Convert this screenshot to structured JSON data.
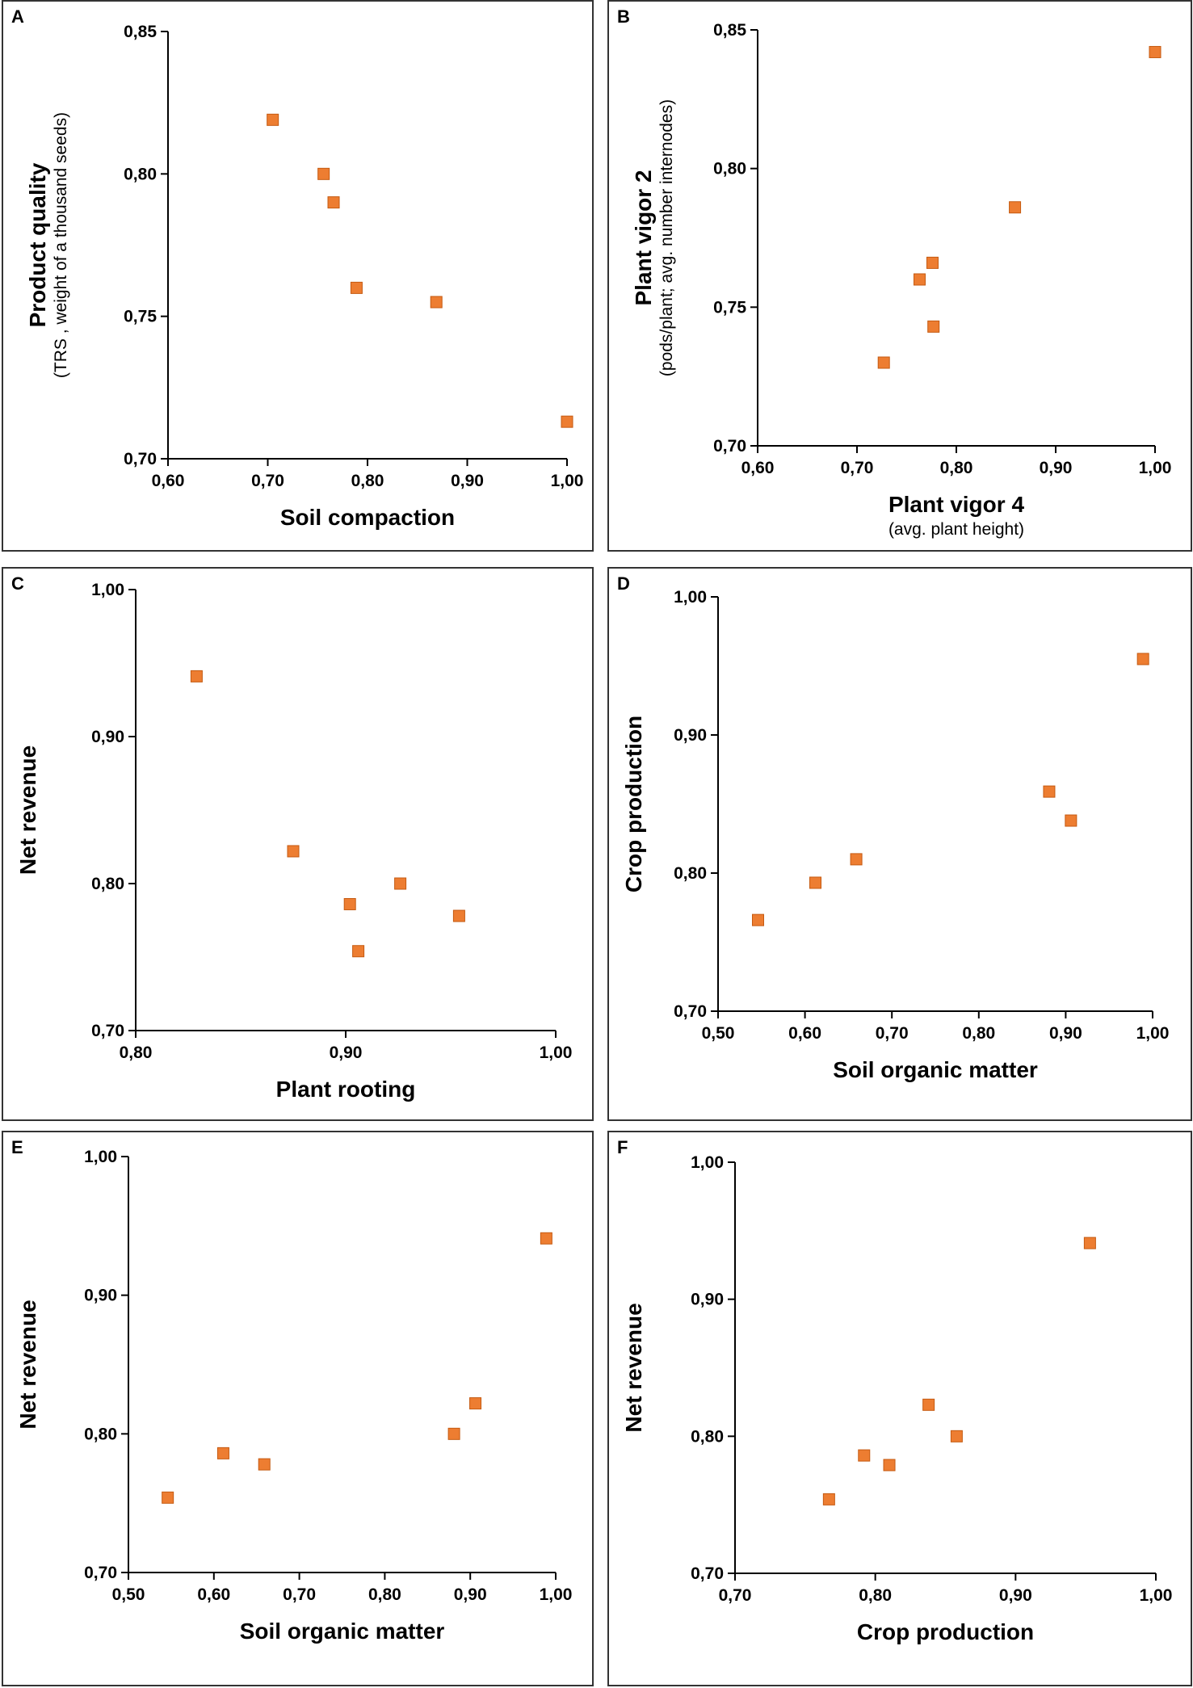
{
  "colors": {
    "marker": "#ED7D31",
    "marker_edge": "#C55A11",
    "axis": "#000000"
  },
  "chart_data": [
    {
      "panel": "A",
      "type": "scatter",
      "xlabel": "Soil compaction",
      "xsublabel": "",
      "ylabel": "Product quality",
      "ysublabel": "(TRS , weight of a thousand seeds)",
      "xlim": [
        0.6,
        1.0
      ],
      "ylim": [
        0.7,
        0.85
      ],
      "xticks": [
        "0,60",
        "0,70",
        "0,80",
        "0,90",
        "1,00"
      ],
      "yticks": [
        "0,70",
        "0,75",
        "0,80",
        "0,85"
      ],
      "x": [
        0.705,
        0.756,
        0.766,
        0.789,
        0.869,
        1.0
      ],
      "y": [
        0.819,
        0.8,
        0.79,
        0.76,
        0.755,
        0.713
      ]
    },
    {
      "panel": "B",
      "type": "scatter",
      "xlabel": "Plant vigor 4",
      "xsublabel": "(avg.  plant  height)",
      "ylabel": "Plant vigor 2",
      "ysublabel": "(pods/plant; avg. number internodes)",
      "xlim": [
        0.6,
        1.0
      ],
      "ylim": [
        0.7,
        0.85
      ],
      "xticks": [
        "0,60",
        "0,70",
        "0,80",
        "0,90",
        "1,00"
      ],
      "yticks": [
        "0,70",
        "0,75",
        "0,80",
        "0,85"
      ],
      "x": [
        0.727,
        0.763,
        0.776,
        0.777,
        0.859,
        1.0
      ],
      "y": [
        0.73,
        0.76,
        0.766,
        0.743,
        0.786,
        0.842
      ]
    },
    {
      "panel": "C",
      "type": "scatter",
      "xlabel": "Plant rooting",
      "xsublabel": "",
      "ylabel": "Net revenue",
      "ysublabel": "",
      "xlim": [
        0.8,
        1.0
      ],
      "ylim": [
        0.7,
        1.0
      ],
      "xticks": [
        "0,80",
        "0,90",
        "1,00"
      ],
      "yticks": [
        "0,70",
        "0,80",
        "0,90",
        "1,00"
      ],
      "x": [
        0.829,
        0.875,
        0.902,
        0.906,
        0.926,
        0.954
      ],
      "y": [
        0.941,
        0.822,
        0.786,
        0.754,
        0.8,
        0.778
      ]
    },
    {
      "panel": "D",
      "type": "scatter",
      "xlabel": "Soil organic matter",
      "xsublabel": "",
      "ylabel": "Crop production",
      "ysublabel": "",
      "xlim": [
        0.5,
        1.0
      ],
      "ylim": [
        0.7,
        1.0
      ],
      "xticks": [
        "0,50",
        "0,60",
        "0,70",
        "0,80",
        "0,90",
        "1,00"
      ],
      "yticks": [
        "0,70",
        "0,80",
        "0,90",
        "1,00"
      ],
      "x": [
        0.546,
        0.612,
        0.659,
        0.881,
        0.906,
        0.989
      ],
      "y": [
        0.766,
        0.793,
        0.81,
        0.859,
        0.838,
        0.955
      ]
    },
    {
      "panel": "E",
      "type": "scatter",
      "xlabel": "Soil organic matter",
      "xsublabel": "",
      "ylabel": "Net revenue",
      "ysublabel": "",
      "xlim": [
        0.5,
        1.0
      ],
      "ylim": [
        0.7,
        1.0
      ],
      "xticks": [
        "0,50",
        "0,60",
        "0,70",
        "0,80",
        "0,90",
        "1,00"
      ],
      "yticks": [
        "0,70",
        "0,80",
        "0,90",
        "1,00"
      ],
      "x": [
        0.546,
        0.611,
        0.659,
        0.881,
        0.906,
        0.989
      ],
      "y": [
        0.754,
        0.786,
        0.778,
        0.8,
        0.822,
        0.941
      ]
    },
    {
      "panel": "F",
      "type": "scatter",
      "xlabel": "Crop production",
      "xsublabel": "",
      "ylabel": "Net revenue",
      "ysublabel": "",
      "xlim": [
        0.7,
        1.0
      ],
      "ylim": [
        0.7,
        1.0
      ],
      "xticks": [
        "0,70",
        "0,80",
        "0,90",
        "1,00"
      ],
      "yticks": [
        "0,70",
        "0,80",
        "0,90",
        "1,00"
      ],
      "x": [
        0.767,
        0.792,
        0.81,
        0.838,
        0.858,
        0.953
      ],
      "y": [
        0.754,
        0.786,
        0.779,
        0.823,
        0.8,
        0.941
      ]
    }
  ]
}
